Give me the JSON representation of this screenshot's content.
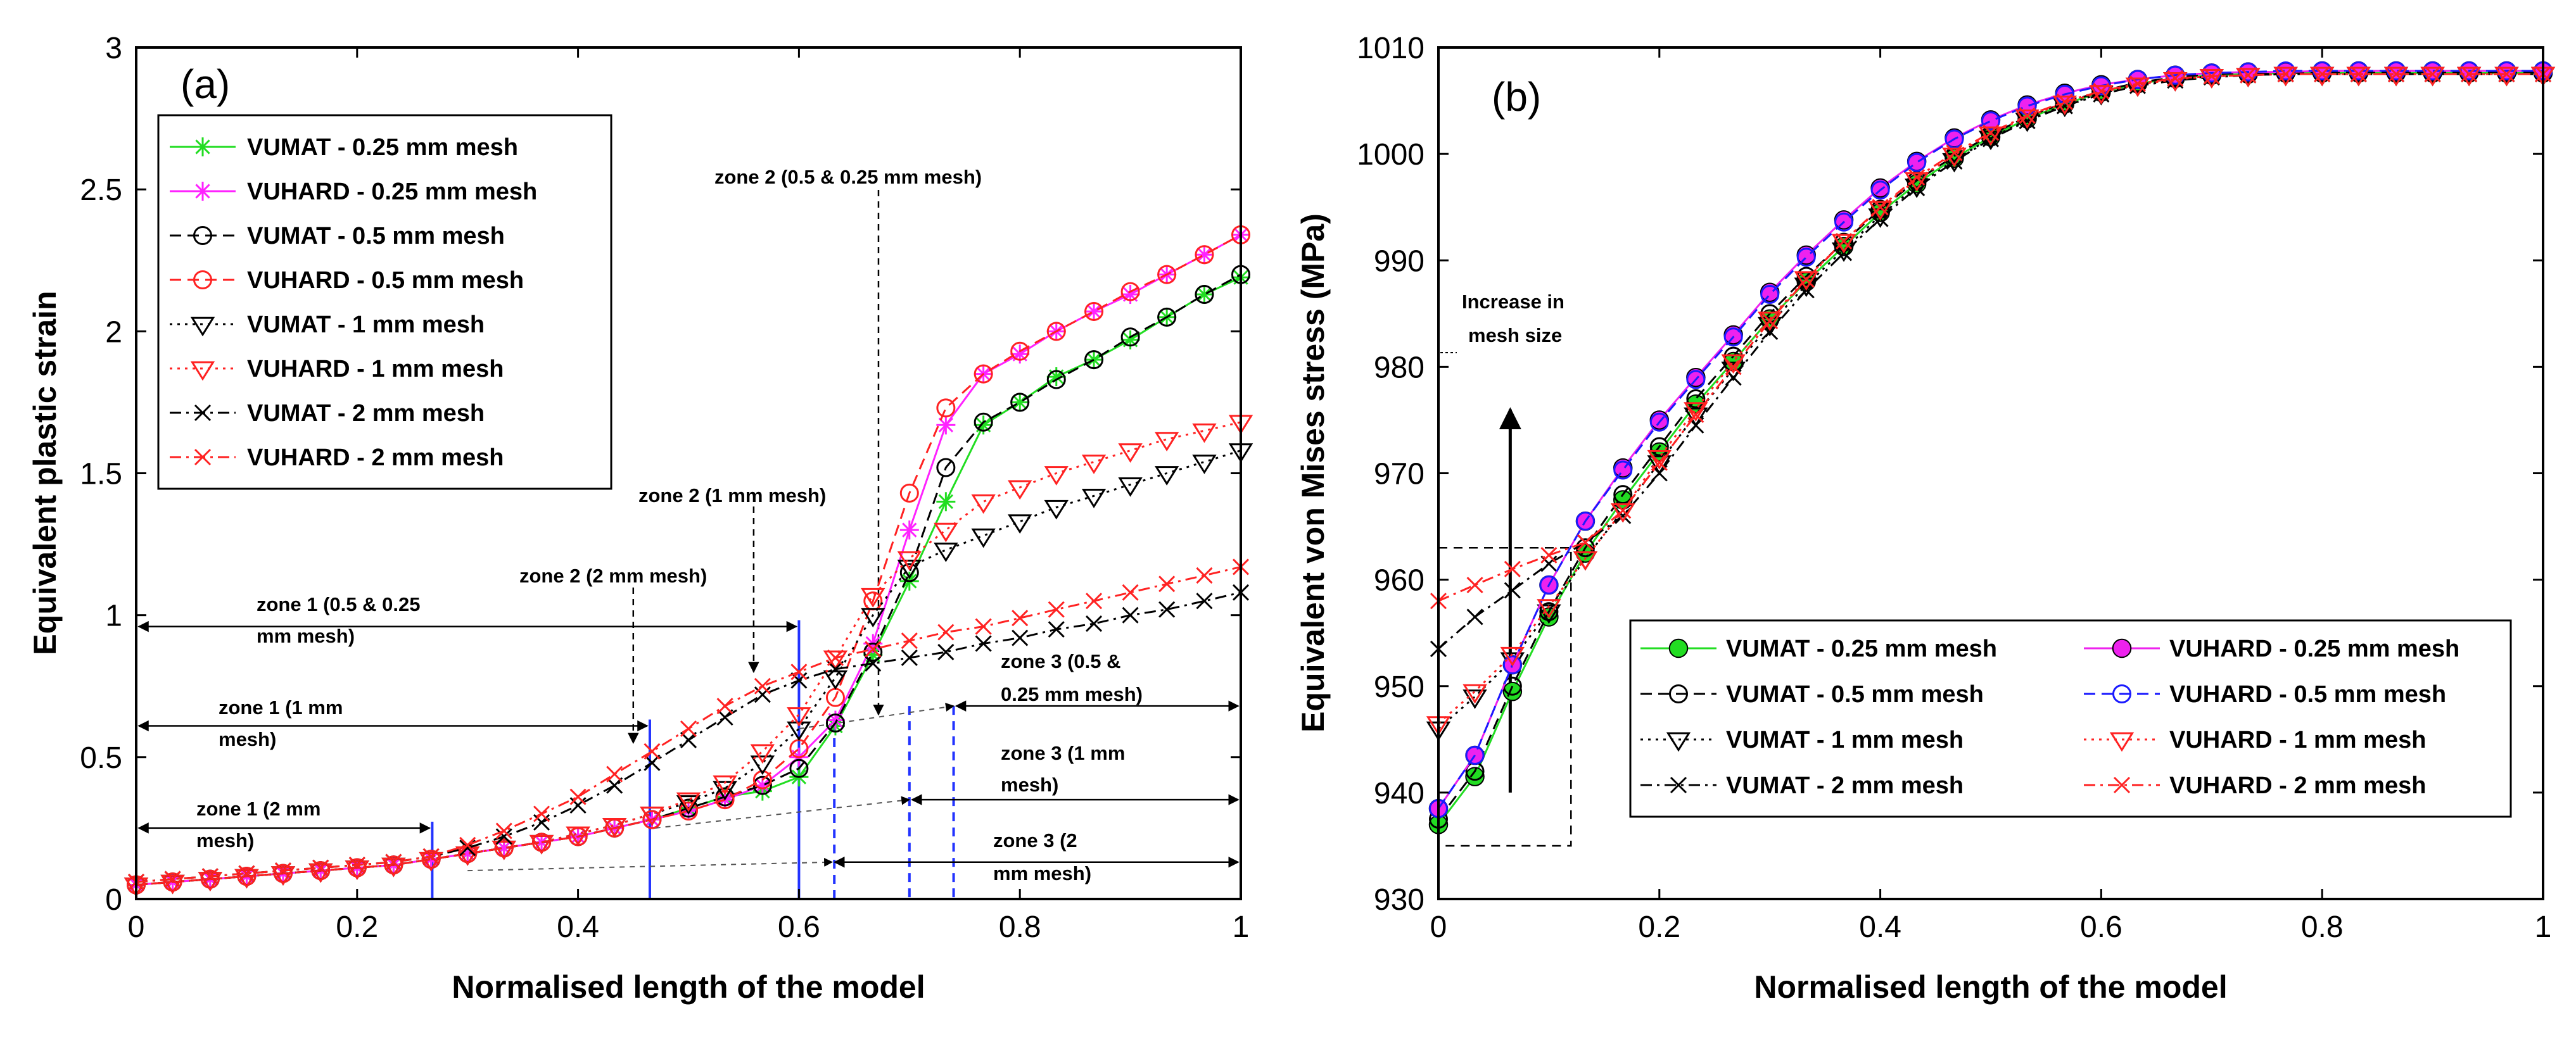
{
  "chart_data": [
    {
      "type": "line",
      "panel_label": "(a)",
      "xlabel": "Normalised length of the model",
      "ylabel": "Equivalent plastic strain",
      "xlim": [
        0,
        1
      ],
      "ylim": [
        0,
        3
      ],
      "xticks": [
        "0",
        "0.2",
        "0.4",
        "0.6",
        "0.8",
        "1"
      ],
      "yticks": [
        "0",
        "0.5",
        "1",
        "1.5",
        "2",
        "2.5",
        "3"
      ],
      "legend_position": "top-left",
      "x": [
        0,
        0.033,
        0.067,
        0.1,
        0.133,
        0.167,
        0.2,
        0.233,
        0.267,
        0.3,
        0.333,
        0.367,
        0.4,
        0.433,
        0.467,
        0.5,
        0.533,
        0.567,
        0.6,
        0.633,
        0.667,
        0.7,
        0.733,
        0.767,
        0.8,
        0.833,
        0.867,
        0.9,
        0.933,
        0.967,
        1
      ],
      "series": [
        {
          "name": "VUMAT   - 0.25 mm mesh",
          "color": "#22dd22",
          "marker": "asterisk",
          "dash": "solid",
          "values": [
            0.05,
            0.06,
            0.07,
            0.08,
            0.09,
            0.1,
            0.11,
            0.12,
            0.14,
            0.16,
            0.18,
            0.2,
            0.22,
            0.25,
            0.28,
            0.32,
            0.36,
            0.38,
            0.43,
            0.61,
            0.86,
            1.12,
            1.4,
            1.67,
            1.75,
            1.84,
            1.9,
            1.97,
            2.05,
            2.13,
            2.19
          ]
        },
        {
          "name": "VUHARD - 0.25 mm mesh",
          "color": "#ff22ff",
          "marker": "asterisk",
          "dash": "solid",
          "values": [
            0.05,
            0.06,
            0.07,
            0.08,
            0.09,
            0.1,
            0.11,
            0.12,
            0.14,
            0.16,
            0.18,
            0.2,
            0.22,
            0.25,
            0.28,
            0.31,
            0.35,
            0.4,
            0.5,
            0.63,
            0.9,
            1.3,
            1.67,
            1.85,
            1.92,
            2.0,
            2.07,
            2.13,
            2.2,
            2.27,
            2.34
          ]
        },
        {
          "name": "VUMAT    -  0.5 mm mesh",
          "color": "#000000",
          "marker": "circle",
          "dash": "dashed",
          "values": [
            0.05,
            0.06,
            0.07,
            0.08,
            0.09,
            0.1,
            0.11,
            0.12,
            0.14,
            0.16,
            0.18,
            0.2,
            0.22,
            0.25,
            0.28,
            0.32,
            0.36,
            0.4,
            0.46,
            0.62,
            0.87,
            1.15,
            1.52,
            1.68,
            1.75,
            1.83,
            1.9,
            1.98,
            2.05,
            2.13,
            2.2
          ]
        },
        {
          "name": "VUHARD  - 0.5 mm mesh",
          "color": "#ff2222",
          "marker": "circle",
          "dash": "dashed",
          "values": [
            0.05,
            0.06,
            0.07,
            0.08,
            0.09,
            0.1,
            0.11,
            0.12,
            0.14,
            0.16,
            0.18,
            0.2,
            0.22,
            0.25,
            0.28,
            0.31,
            0.35,
            0.42,
            0.53,
            0.71,
            1.05,
            1.43,
            1.73,
            1.85,
            1.93,
            2.0,
            2.07,
            2.14,
            2.2,
            2.27,
            2.34
          ]
        },
        {
          "name": "VUMAT     - 1 mm mesh",
          "color": "#000000",
          "marker": "triangle-down",
          "dash": "dotted",
          "values": [
            0.05,
            0.06,
            0.07,
            0.08,
            0.09,
            0.1,
            0.11,
            0.12,
            0.14,
            0.16,
            0.18,
            0.2,
            0.23,
            0.26,
            0.3,
            0.34,
            0.39,
            0.48,
            0.6,
            0.78,
            1.0,
            1.17,
            1.23,
            1.28,
            1.33,
            1.38,
            1.42,
            1.46,
            1.5,
            1.54,
            1.58
          ]
        },
        {
          "name": "VUHARD   - 1 mm mesh",
          "color": "#ff2222",
          "marker": "triangle-down",
          "dash": "dotted",
          "values": [
            0.05,
            0.06,
            0.07,
            0.08,
            0.09,
            0.1,
            0.11,
            0.12,
            0.14,
            0.16,
            0.18,
            0.2,
            0.23,
            0.26,
            0.3,
            0.35,
            0.41,
            0.52,
            0.65,
            0.85,
            1.07,
            1.2,
            1.3,
            1.4,
            1.45,
            1.5,
            1.54,
            1.58,
            1.62,
            1.65,
            1.68
          ]
        },
        {
          "name": "VUMAT      - 2 mm mesh",
          "color": "#000000",
          "marker": "x",
          "dash": "dashdot",
          "values": [
            0.06,
            0.07,
            0.08,
            0.09,
            0.1,
            0.11,
            0.12,
            0.13,
            0.15,
            0.18,
            0.22,
            0.27,
            0.33,
            0.4,
            0.48,
            0.56,
            0.64,
            0.72,
            0.77,
            0.81,
            0.83,
            0.85,
            0.87,
            0.9,
            0.92,
            0.95,
            0.97,
            1.0,
            1.02,
            1.05,
            1.08
          ]
        },
        {
          "name": "VUHARD   - 2 mm mesh",
          "color": "#ff2222",
          "marker": "x",
          "dash": "dashdot",
          "values": [
            0.06,
            0.07,
            0.08,
            0.09,
            0.1,
            0.11,
            0.12,
            0.13,
            0.15,
            0.19,
            0.24,
            0.3,
            0.36,
            0.44,
            0.52,
            0.6,
            0.68,
            0.75,
            0.8,
            0.85,
            0.88,
            0.91,
            0.94,
            0.96,
            0.99,
            1.02,
            1.05,
            1.08,
            1.11,
            1.14,
            1.17
          ]
        }
      ],
      "annotations": [
        {
          "text": "zone 2 (0.5 & 0.25 mm mesh)",
          "marker_x": 0.672
        },
        {
          "text": "zone 2 (1 mm mesh)",
          "marker_x": 0.559
        },
        {
          "text": "zone 2 (2 mm mesh)",
          "marker_x": 0.45
        },
        {
          "text": "zone 1 (0.5 & 0.25",
          "text2": "mm mesh)",
          "arrow_from": 0,
          "arrow_to": 0.6,
          "arrow_y": 0.96
        },
        {
          "text": "zone 1 (1 mm",
          "text2": "mesh)",
          "arrow_from": 0,
          "arrow_to": 0.465,
          "arrow_y": 0.61
        },
        {
          "text": "zone 1 (2 mm",
          "text2": "mesh)",
          "arrow_from": 0,
          "arrow_to": 0.268,
          "arrow_y": 0.25
        },
        {
          "text": "zone 3 (0.5 &",
          "text2": "0.25 mm mesh)",
          "arrow_from": 0.74,
          "arrow_to": 1.0,
          "arrow_y": 0.68
        },
        {
          "text": "zone 3 (1 mm",
          "text2": "mesh)",
          "arrow_from": 0.7,
          "arrow_to": 1.0,
          "arrow_y": 0.35
        },
        {
          "text": "zone 3 (2",
          "text2": "mm mesh)",
          "arrow_from": 0.63,
          "arrow_to": 1.0,
          "arrow_y": 0.13
        }
      ],
      "blue_boundary_lines": [
        0.268,
        0.465,
        0.6
      ],
      "blue_dashed_lines": [
        0.632,
        0.7,
        0.74
      ]
    },
    {
      "type": "line",
      "panel_label": "(b)",
      "xlabel": "Normalised length of the model",
      "ylabel": "Equivalent von Mises stress (MPa)",
      "xlim": [
        0,
        1
      ],
      "ylim": [
        930,
        1010
      ],
      "xticks": [
        "0",
        "0.2",
        "0.4",
        "0.6",
        "0.8",
        "1"
      ],
      "yticks": [
        "930",
        "940",
        "950",
        "960",
        "970",
        "980",
        "990",
        "1000",
        "1010"
      ],
      "legend_position": "bottom-right",
      "annotation": {
        "text": "Increase in",
        "text2": "mesh size",
        "arrow_x": 0.065,
        "arrow_from": 940,
        "arrow_to": 976
      },
      "dashed_box": {
        "x": [
          0,
          0.12
        ],
        "y": [
          935,
          963
        ]
      },
      "x": [
        0,
        0.033,
        0.067,
        0.1,
        0.133,
        0.167,
        0.2,
        0.233,
        0.267,
        0.3,
        0.333,
        0.367,
        0.4,
        0.433,
        0.467,
        0.5,
        0.533,
        0.567,
        0.6,
        0.633,
        0.667,
        0.7,
        0.733,
        0.767,
        0.8,
        0.833,
        0.867,
        0.9,
        0.933,
        0.967,
        1
      ],
      "series": [
        {
          "name": "VUMAT - 0.25 mm mesh",
          "color": "#22dd22",
          "marker": "filled-circle",
          "dash": "solid",
          "values": [
            937,
            941.5,
            949.5,
            956.5,
            962.5,
            967.5,
            972,
            976.5,
            980.5,
            984.5,
            988,
            991.3,
            994.5,
            997.2,
            999.6,
            1001.6,
            1003.3,
            1004.7,
            1005.8,
            1006.6,
            1007.1,
            1007.4,
            1007.5,
            1007.6,
            1007.6,
            1007.6,
            1007.6,
            1007.6,
            1007.6,
            1007.6,
            1007.6
          ]
        },
        {
          "name": "VUMAT - 0.5 mm mesh",
          "color": "#000000",
          "marker": "circle",
          "dash": "dashed",
          "values": [
            937.5,
            942,
            950,
            957,
            963,
            968,
            972.5,
            977,
            981,
            985,
            988.5,
            991.7,
            994.8,
            997.5,
            999.8,
            1001.8,
            1003.5,
            1004.8,
            1005.9,
            1006.7,
            1007.2,
            1007.5,
            1007.6,
            1007.6,
            1007.7,
            1007.7,
            1007.7,
            1007.7,
            1007.7,
            1007.7,
            1007.7
          ]
        },
        {
          "name": "VUMAT - 1 mm mesh",
          "color": "#000000",
          "marker": "triangle-down",
          "dash": "dotted",
          "values": [
            946,
            949,
            952.5,
            957,
            962,
            966.5,
            971,
            975.5,
            979.8,
            984,
            987.7,
            991,
            994.2,
            997,
            999.4,
            1001.5,
            1003.2,
            1004.6,
            1005.7,
            1006.5,
            1007,
            1007.3,
            1007.4,
            1007.5,
            1007.5,
            1007.5,
            1007.5,
            1007.5,
            1007.5,
            1007.5,
            1007.5
          ]
        },
        {
          "name": "VUMAT -  2 mm mesh",
          "color": "#000000",
          "marker": "x",
          "dash": "dashdot",
          "values": [
            953.5,
            956.5,
            959,
            961.5,
            963.5,
            966,
            970,
            974.5,
            979,
            983.3,
            987.2,
            990.7,
            993.9,
            996.8,
            999.3,
            1001.4,
            1003.1,
            1004.5,
            1005.6,
            1006.4,
            1006.9,
            1007.2,
            1007.4,
            1007.5,
            1007.5,
            1007.5,
            1007.5,
            1007.5,
            1007.5,
            1007.5,
            1007.5
          ]
        },
        {
          "name": "VUHARD - 0.25 mm mesh",
          "color": "#ee22ee",
          "marker": "filled-circle",
          "dash": "solid",
          "values": [
            938.5,
            943.5,
            952,
            959.5,
            965.5,
            970.5,
            975,
            979,
            983,
            987,
            990.5,
            993.8,
            996.8,
            999.3,
            1001.5,
            1003.2,
            1004.6,
            1005.7,
            1006.5,
            1007,
            1007.4,
            1007.6,
            1007.7,
            1007.7,
            1007.8,
            1007.8,
            1007.8,
            1007.8,
            1007.8,
            1007.8,
            1007.8
          ]
        },
        {
          "name": "VUHARD - 0.5 mm mesh",
          "color": "#1a1aff",
          "marker": "circle",
          "dash": "dashed",
          "values": [
            938.5,
            943.5,
            952,
            959.5,
            965.5,
            970.3,
            974.8,
            978.8,
            982.8,
            986.8,
            990.3,
            993.6,
            996.6,
            999.2,
            1001.4,
            1003.1,
            1004.5,
            1005.6,
            1006.4,
            1007,
            1007.4,
            1007.6,
            1007.7,
            1007.8,
            1007.8,
            1007.8,
            1007.8,
            1007.8,
            1007.8,
            1007.8,
            1007.8
          ]
        },
        {
          "name": "VUHARD - 1 mm mesh",
          "color": "#ff2222",
          "marker": "triangle-down",
          "dash": "dotted",
          "values": [
            946.5,
            949.5,
            953,
            957.5,
            962,
            966.5,
            971.5,
            976,
            980.5,
            984.5,
            988.3,
            991.8,
            994.9,
            997.6,
            999.9,
            1001.9,
            1003.5,
            1004.8,
            1005.8,
            1006.5,
            1007,
            1007.3,
            1007.4,
            1007.5,
            1007.5,
            1007.5,
            1007.5,
            1007.5,
            1007.5,
            1007.5,
            1007.5
          ]
        },
        {
          "name": "VUHARD - 2 mm mesh",
          "color": "#ff2222",
          "marker": "x",
          "dash": "dashdot",
          "values": [
            958,
            959.5,
            961,
            962.3,
            963.5,
            966.5,
            971,
            975.5,
            980,
            984.3,
            988.2,
            991.8,
            995,
            997.8,
            1000.1,
            1002,
            1003.6,
            1004.9,
            1005.9,
            1006.6,
            1007.1,
            1007.3,
            1007.4,
            1007.5,
            1007.5,
            1007.5,
            1007.5,
            1007.5,
            1007.5,
            1007.5,
            1007.5
          ]
        }
      ]
    }
  ]
}
